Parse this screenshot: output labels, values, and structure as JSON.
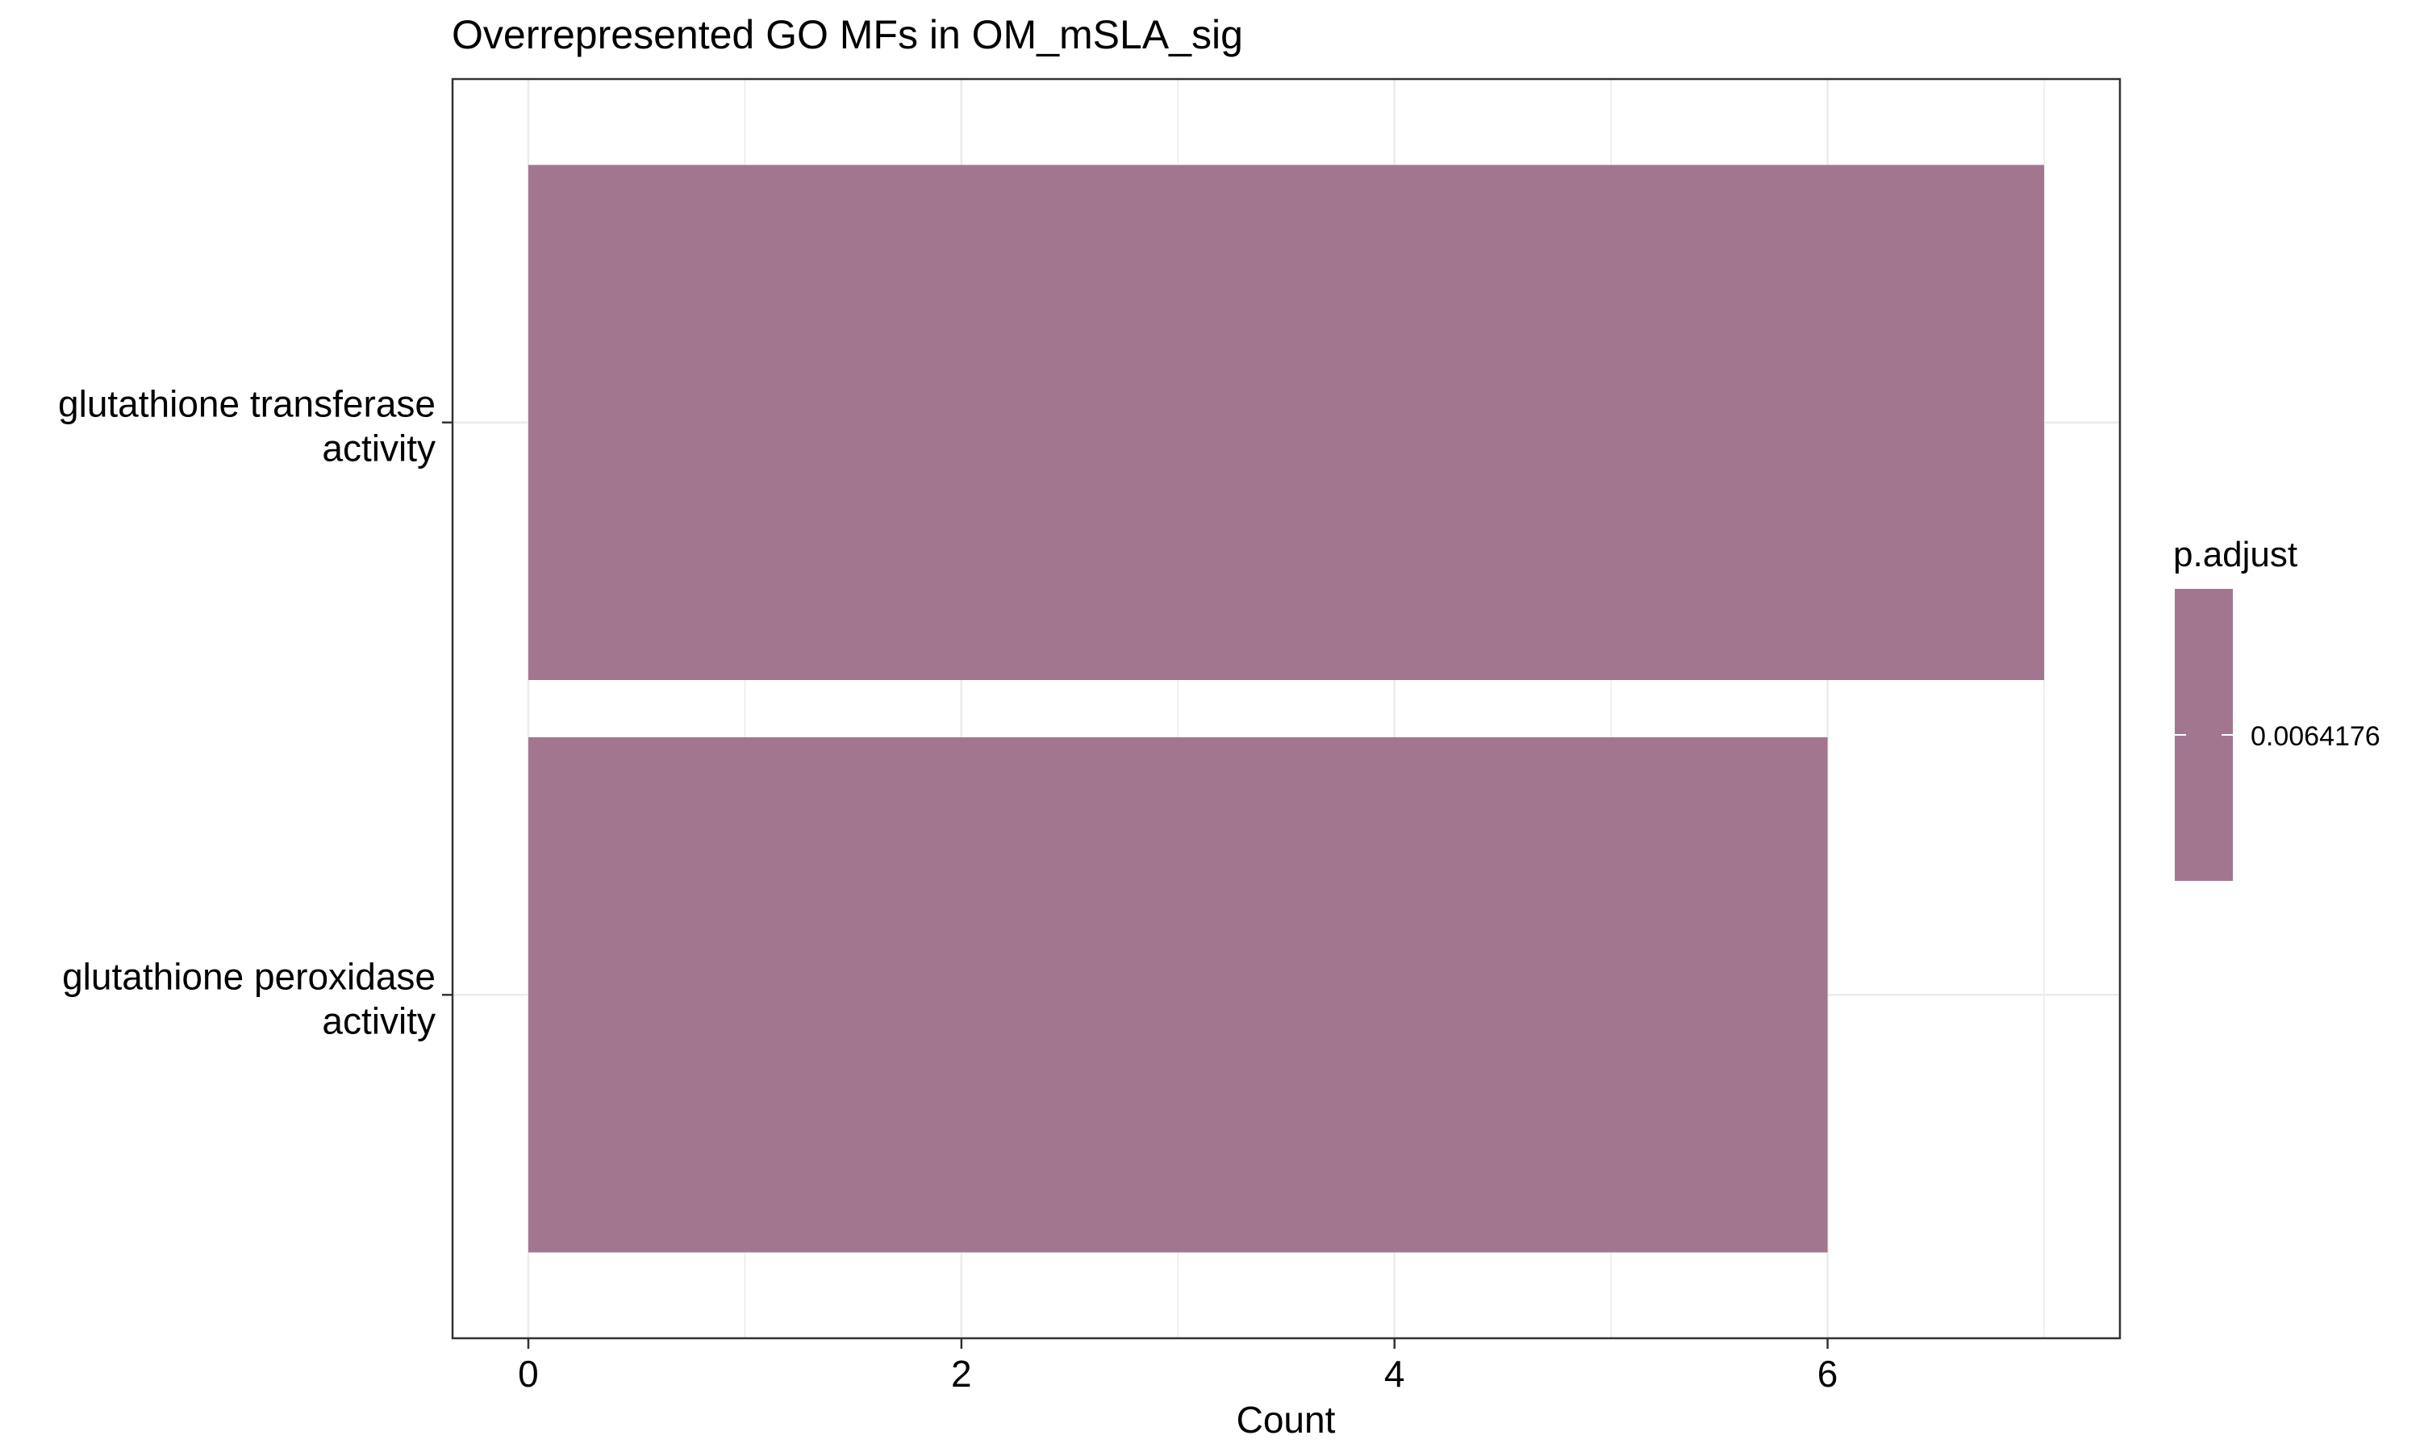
{
  "chart_data": {
    "type": "bar",
    "orientation": "horizontal",
    "title": "Overrepresented GO MFs in OM_mSLA_sig",
    "xlabel": "Count",
    "ylabel": "",
    "xlim": [
      -0.35,
      7.35
    ],
    "x_ticks": [
      "0",
      "2",
      "4",
      "6"
    ],
    "categories": [
      [
        "glutathione transferase",
        "activity"
      ],
      [
        "glutathione peroxidase",
        "activity"
      ]
    ],
    "values": [
      7,
      6
    ],
    "p_adjust": [
      0.0064176,
      0.0064176
    ],
    "bar_color": "#a37690",
    "grid": true,
    "legend": {
      "title": "p.adjust",
      "position": "right",
      "labels": [
        "0.0064176"
      ],
      "color": "#a37690"
    }
  }
}
